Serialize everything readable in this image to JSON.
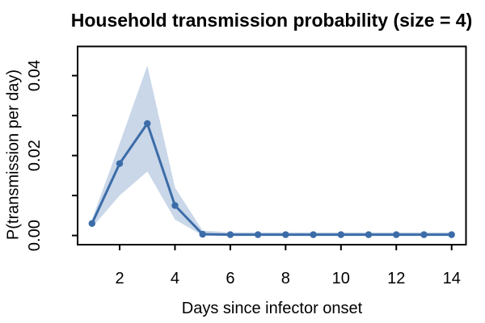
{
  "figure": {
    "title": "Household transmission probability (size = 4)",
    "background": "#ffffff"
  },
  "chart_data": {
    "type": "line",
    "title": "Household transmission probability (size = 4)",
    "xlabel": "Days since infector onset",
    "ylabel": "P(transmission per day)",
    "x": [
      1,
      2,
      3,
      4,
      5,
      6,
      7,
      8,
      9,
      10,
      11,
      12,
      13,
      14
    ],
    "series": [
      {
        "name": "mean transmission probability",
        "role": "line",
        "values": [
          0.003,
          0.018,
          0.028,
          0.0075,
          0.0003,
          0.0002,
          0.0002,
          0.0002,
          0.0002,
          0.0002,
          0.0002,
          0.0002,
          0.0002,
          0.0002
        ]
      },
      {
        "name": "band upper bound",
        "role": "band-upper",
        "values": [
          0.004,
          0.023,
          0.0425,
          0.012,
          0.0012,
          0.0008,
          0.0008,
          0.0008,
          0.0008,
          0.0008,
          0.0008,
          0.0008,
          0.0008,
          0.0008
        ]
      },
      {
        "name": "band lower bound",
        "role": "band-lower",
        "values": [
          0.002,
          0.01,
          0.016,
          0.004,
          0.0,
          0.0,
          0.0,
          0.0,
          0.0,
          0.0,
          0.0,
          0.0,
          0.0,
          0.0
        ]
      }
    ],
    "xlim": [
      0.48,
      14.52
    ],
    "ylim": [
      -0.0023,
      0.0473
    ],
    "x_ticks": [
      2,
      4,
      6,
      8,
      10,
      12,
      14
    ],
    "x_tick_labels": [
      "2",
      "4",
      "6",
      "8",
      "10",
      "12",
      "14"
    ],
    "y_ticks": [
      0,
      0.01,
      0.02,
      0.03,
      0.04
    ],
    "y_tick_labels": [
      "0.00",
      "",
      "0.02",
      "",
      "0.04"
    ],
    "grid": false,
    "legend": "none",
    "colors": {
      "line": "#3c6ca8",
      "marker": "#3c6ca8",
      "band": "#c9d7e9",
      "axis": "#000000",
      "text": "#000000"
    }
  }
}
